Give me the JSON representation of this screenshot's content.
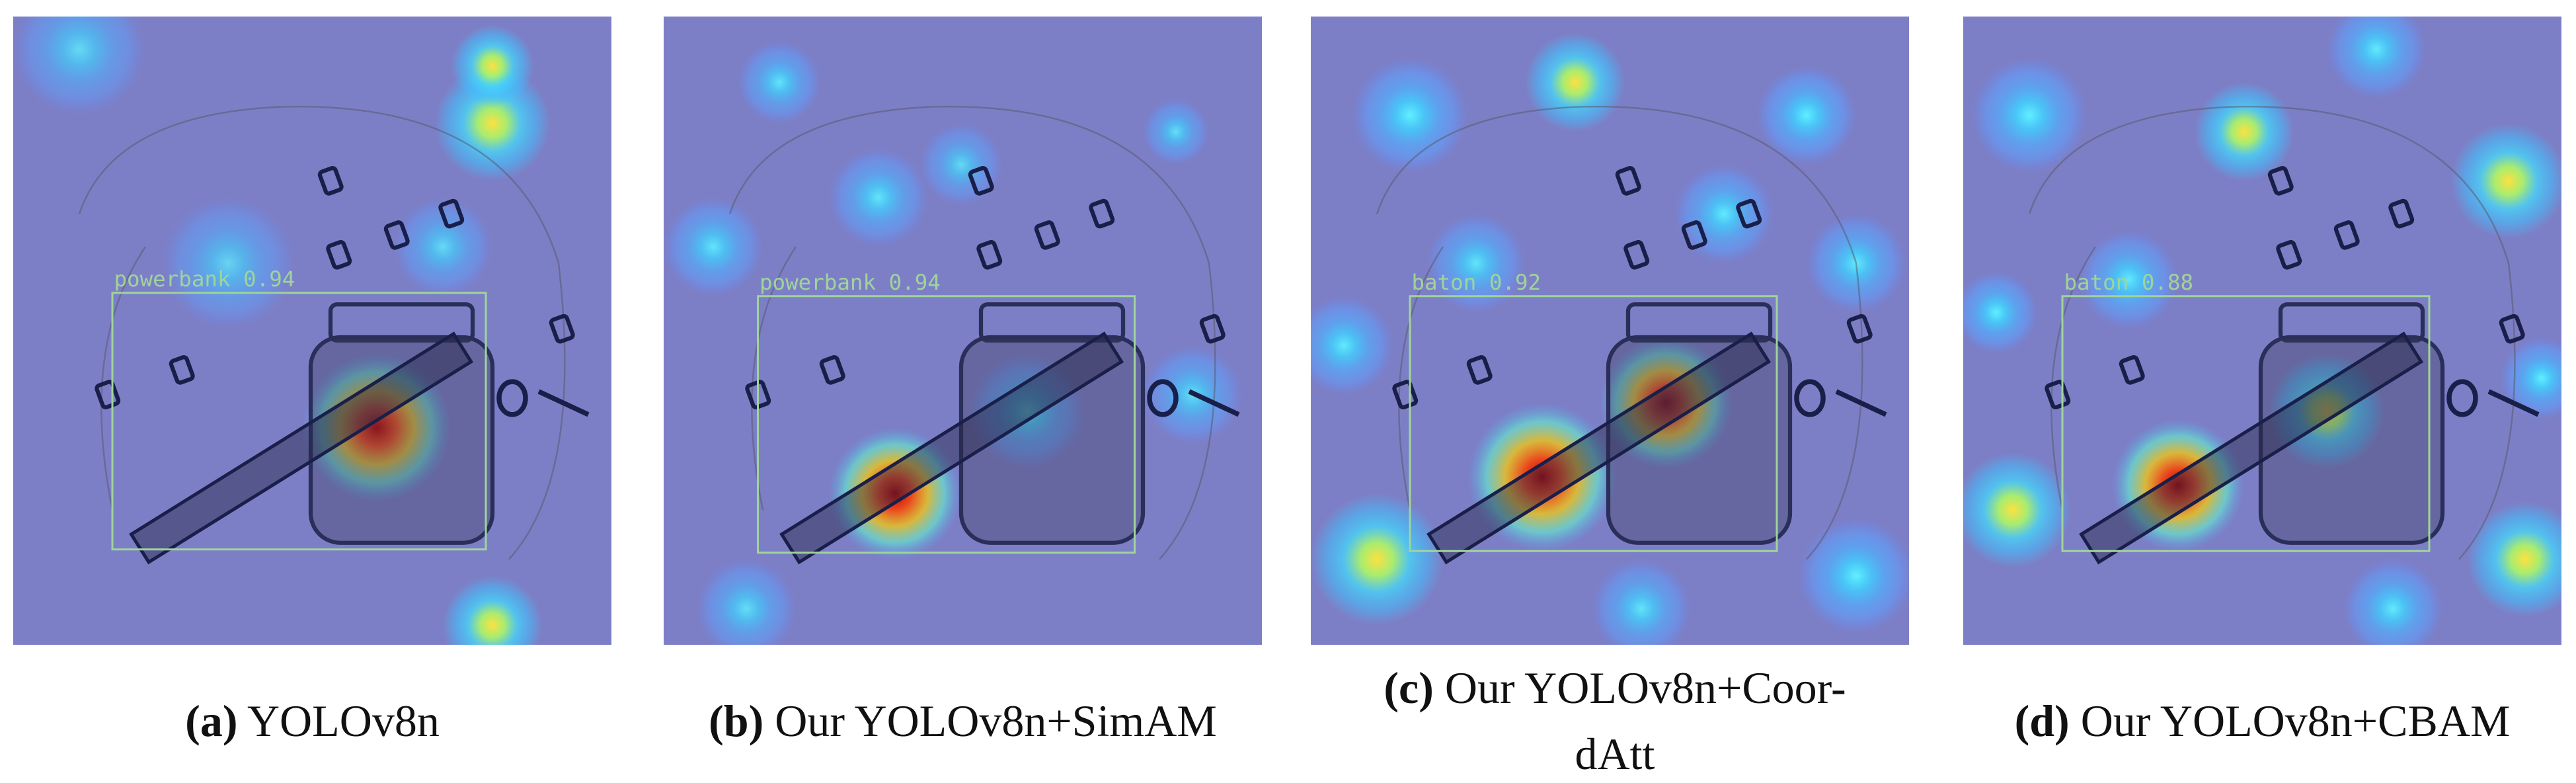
{
  "panels": [
    {
      "letter": "(a)",
      "caption": "YOLOv8n",
      "detection": "powerbank 0.94"
    },
    {
      "letter": "(b)",
      "caption": "Our YOLOv8n+SimAM",
      "detection": "powerbank 0.94"
    },
    {
      "letter": "(c)",
      "caption": "Our YOLOv8n+Coor-dAtt",
      "detection": "baton 0.92"
    },
    {
      "letter": "(d)",
      "caption": "Our YOLOv8n+CBAM",
      "detection": "baton 0.88"
    }
  ]
}
